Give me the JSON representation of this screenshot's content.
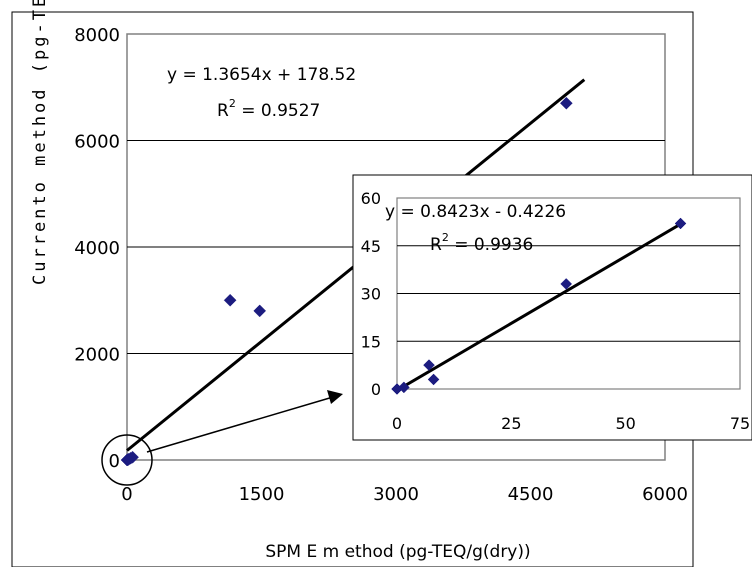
{
  "chart_data": [
    {
      "type": "scatter",
      "title": "",
      "xlabel": "SPM E m ethod (pg-TEQ/g(dry))",
      "ylabel": "Currento method (pg-TEQ/g",
      "xlim": [
        0,
        6000
      ],
      "ylim": [
        0,
        8000
      ],
      "x_ticks": [
        "0",
        "1500",
        "3000",
        "4500",
        "6000"
      ],
      "y_ticks": [
        "0",
        "2000",
        "4000",
        "6000",
        "8000"
      ],
      "grid": "horizontal",
      "series": [
        {
          "x": [
            0,
            5,
            10,
            15,
            20,
            40,
            62,
            1150,
            1480,
            4900
          ],
          "y": [
            0,
            3,
            8,
            10,
            15,
            33,
            52,
            3000,
            2800,
            6700
          ]
        }
      ],
      "trendline": {
        "slope": 1.3654,
        "intercept": 178.52,
        "x_range": [
          0,
          5100
        ]
      },
      "annotations": [
        "y = 1.3654x + 178.52",
        "R",
        "2",
        " = 0.9527"
      ]
    },
    {
      "type": "scatter",
      "title": "",
      "xlabel": "",
      "ylabel": "",
      "xlim": [
        0,
        75
      ],
      "ylim": [
        0,
        60
      ],
      "x_ticks": [
        "0",
        "25",
        "50",
        "75"
      ],
      "y_ticks": [
        "0",
        "15",
        "30",
        "45",
        "60"
      ],
      "grid": "horizontal",
      "series": [
        {
          "x": [
            0,
            1.5,
            7,
            8,
            37,
            62
          ],
          "y": [
            0,
            0.5,
            7.5,
            3,
            33,
            52
          ]
        }
      ],
      "trendline": {
        "slope": 0.8423,
        "intercept": -0.4226,
        "x_range": [
          0.5,
          62
        ]
      },
      "annotations": [
        "y = 0.8423x - 0.4226",
        "R",
        "2",
        " = 0.9936"
      ]
    }
  ],
  "colors": {
    "marker": "#1c1c80",
    "gridline": "#000000",
    "plot_border": "#808080"
  }
}
